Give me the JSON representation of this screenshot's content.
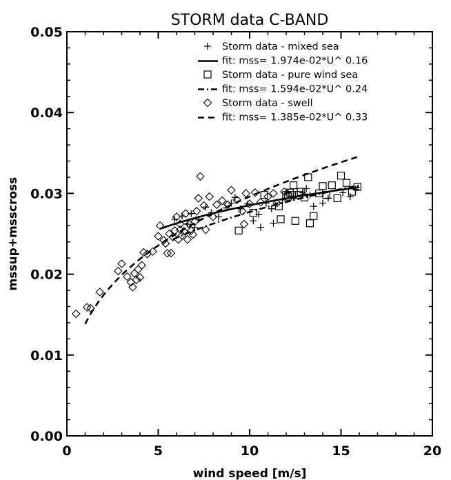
{
  "chart_data": {
    "type": "scatter",
    "title": "STORM data C-BAND",
    "xlabel": "wind speed [m/s]",
    "ylabel": "mssup+msscross",
    "xlim": [
      0,
      20
    ],
    "ylim": [
      0.0,
      0.05
    ],
    "x_ticks": [
      0,
      5,
      10,
      15,
      20
    ],
    "x_tick_labels": [
      "0",
      "5",
      "10",
      "15",
      "20"
    ],
    "y_ticks": [
      0.0,
      0.01,
      0.02,
      0.03,
      0.04,
      0.05
    ],
    "y_tick_labels": [
      "0.00",
      "0.01",
      "0.02",
      "0.03",
      "0.04",
      "0.05"
    ],
    "legend_position": "top-right",
    "grid": false,
    "series": [
      {
        "name": "Storm data - mixed sea",
        "marker": "plus",
        "points": [
          [
            5.9,
            0.0268
          ],
          [
            6.3,
            0.0272
          ],
          [
            6.6,
            0.0262
          ],
          [
            6.8,
            0.0275
          ],
          [
            7.0,
            0.0258
          ],
          [
            7.2,
            0.0268
          ],
          [
            7.6,
            0.0283
          ],
          [
            7.9,
            0.0276
          ],
          [
            8.3,
            0.0271
          ],
          [
            8.7,
            0.0282
          ],
          [
            9.0,
            0.0288
          ],
          [
            9.2,
            0.0295
          ],
          [
            9.5,
            0.0281
          ],
          [
            9.9,
            0.0287
          ],
          [
            10.2,
            0.0266
          ],
          [
            10.5,
            0.0274
          ],
          [
            10.6,
            0.0258
          ],
          [
            10.9,
            0.0288
          ],
          [
            11.2,
            0.0281
          ],
          [
            11.3,
            0.0263
          ],
          [
            11.8,
            0.0292
          ],
          [
            12.1,
            0.0301
          ],
          [
            12.4,
            0.0295
          ],
          [
            12.9,
            0.0301
          ],
          [
            13.1,
            0.0306
          ],
          [
            13.3,
            0.0298
          ],
          [
            13.5,
            0.0284
          ],
          [
            14.0,
            0.0288
          ],
          [
            14.3,
            0.0294
          ],
          [
            15.1,
            0.0301
          ],
          [
            15.5,
            0.0296
          ],
          [
            15.8,
            0.0305
          ]
        ]
      },
      {
        "name": "fit: mss=   1.974e-02*U^ 0.16",
        "line": "solid",
        "fit": {
          "a": 0.01974,
          "b": 0.16,
          "x_range": [
            5.1,
            16.0
          ]
        }
      },
      {
        "name": "Storm data - pure wind sea",
        "marker": "square",
        "points": [
          [
            9.4,
            0.0254
          ],
          [
            10.2,
            0.0276
          ],
          [
            10.8,
            0.0298
          ],
          [
            11.6,
            0.0284
          ],
          [
            11.7,
            0.0268
          ],
          [
            12.1,
            0.0296
          ],
          [
            12.2,
            0.0301
          ],
          [
            12.4,
            0.031
          ],
          [
            12.5,
            0.0266
          ],
          [
            12.8,
            0.0302
          ],
          [
            13.0,
            0.0295
          ],
          [
            13.2,
            0.032
          ],
          [
            13.3,
            0.0263
          ],
          [
            13.5,
            0.0272
          ],
          [
            13.8,
            0.03
          ],
          [
            14.0,
            0.0309
          ],
          [
            14.2,
            0.0298
          ],
          [
            14.5,
            0.031
          ],
          [
            14.8,
            0.0294
          ],
          [
            15.0,
            0.0322
          ],
          [
            15.3,
            0.0313
          ],
          [
            15.6,
            0.0302
          ],
          [
            15.9,
            0.0308
          ],
          [
            12.0,
            0.0298
          ],
          [
            12.7,
            0.0298
          ],
          [
            12.3,
            0.0298
          ]
        ]
      },
      {
        "name": "fit: mss=   1.594e-02*U^ 0.24",
        "line": "dashdot",
        "fit": {
          "a": 0.01594,
          "b": 0.24,
          "x_range": [
            5.8,
            16.0
          ]
        }
      },
      {
        "name": "Storm data - swell",
        "marker": "diamond",
        "points": [
          [
            0.5,
            0.0151
          ],
          [
            1.1,
            0.0159
          ],
          [
            1.3,
            0.0158
          ],
          [
            1.8,
            0.0178
          ],
          [
            2.8,
            0.0204
          ],
          [
            3.0,
            0.0213
          ],
          [
            3.3,
            0.0197
          ],
          [
            3.5,
            0.019
          ],
          [
            3.6,
            0.0184
          ],
          [
            3.7,
            0.0201
          ],
          [
            3.8,
            0.0193
          ],
          [
            3.9,
            0.0206
          ],
          [
            4.0,
            0.0196
          ],
          [
            4.1,
            0.0211
          ],
          [
            4.2,
            0.0227
          ],
          [
            4.4,
            0.0225
          ],
          [
            4.7,
            0.0228
          ],
          [
            5.0,
            0.0247
          ],
          [
            5.1,
            0.026
          ],
          [
            5.3,
            0.0242
          ],
          [
            5.4,
            0.0238
          ],
          [
            5.5,
            0.0226
          ],
          [
            5.6,
            0.025
          ],
          [
            5.7,
            0.0226
          ],
          [
            5.8,
            0.0246
          ],
          [
            5.9,
            0.0254
          ],
          [
            6.0,
            0.0271
          ],
          [
            6.1,
            0.0243
          ],
          [
            6.2,
            0.0262
          ],
          [
            6.3,
            0.0248
          ],
          [
            6.4,
            0.0253
          ],
          [
            6.5,
            0.0275
          ],
          [
            6.6,
            0.0243
          ],
          [
            6.7,
            0.0262
          ],
          [
            6.8,
            0.0254
          ],
          [
            6.9,
            0.0249
          ],
          [
            7.0,
            0.0265
          ],
          [
            7.1,
            0.0278
          ],
          [
            7.2,
            0.0294
          ],
          [
            7.3,
            0.0321
          ],
          [
            7.5,
            0.0285
          ],
          [
            7.6,
            0.0255
          ],
          [
            7.8,
            0.0296
          ],
          [
            8.2,
            0.0286
          ],
          [
            8.5,
            0.0291
          ],
          [
            8.8,
            0.0286
          ],
          [
            9.0,
            0.0304
          ],
          [
            9.3,
            0.0292
          ],
          [
            9.6,
            0.0278
          ],
          [
            9.8,
            0.03
          ],
          [
            10.0,
            0.0287
          ],
          [
            10.3,
            0.0301
          ],
          [
            10.6,
            0.0289
          ],
          [
            11.0,
            0.0296
          ],
          [
            11.3,
            0.03
          ],
          [
            11.5,
            0.0288
          ],
          [
            11.9,
            0.0302
          ],
          [
            9.7,
            0.0262
          ],
          [
            8.0,
            0.0271
          ],
          [
            6.2,
            0.0255
          ]
        ]
      },
      {
        "name": "fit: mss=   1.385e-02*U^ 0.33",
        "line": "dashed",
        "fit": {
          "a": 0.01385,
          "b": 0.33,
          "x_range": [
            1.0,
            16.0
          ]
        }
      }
    ]
  }
}
